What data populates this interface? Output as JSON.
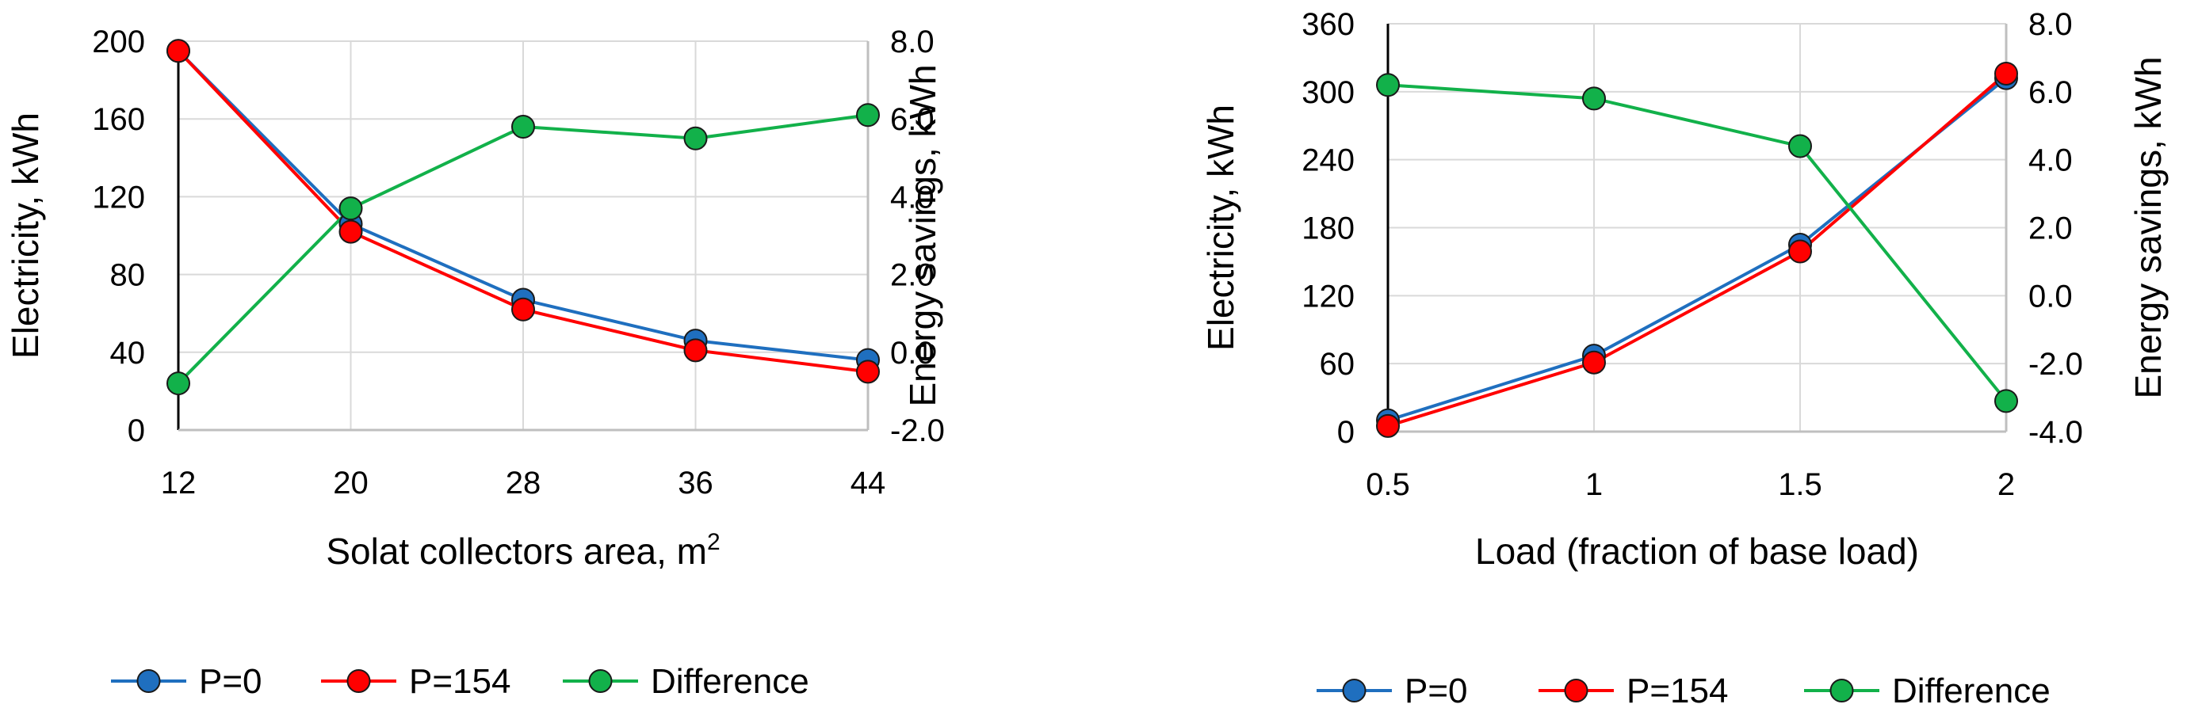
{
  "colors": {
    "p0": "#1f6fbf",
    "p154": "#ff0000",
    "diff": "#12b14a",
    "grid": "#d9d9d9"
  },
  "legend": {
    "p0": "P=0",
    "p154": "P=154",
    "diff": "Difference"
  },
  "chart_data": [
    {
      "type": "line",
      "title": "",
      "categories": [
        "12",
        "20",
        "28",
        "36",
        "44"
      ],
      "xlabel": "Solat collectors area, m",
      "xlabel_sup": "2",
      "ylabel": "Electricity, kWh",
      "y2label": "Energy savings, kWh",
      "ylim": [
        0,
        200
      ],
      "yticks": [
        "0",
        "40",
        "80",
        "120",
        "160",
        "200"
      ],
      "y2lim": [
        -2.0,
        8.0
      ],
      "y2ticks": [
        "-2.0",
        "0.0",
        "2.0",
        "4.0",
        "6.0",
        "8.0"
      ],
      "series": [
        {
          "name": "P=0",
          "axis": "left",
          "values": [
            195,
            106,
            67,
            46,
            36
          ]
        },
        {
          "name": "P=154",
          "axis": "left",
          "values": [
            195,
            102,
            62,
            41,
            30
          ]
        },
        {
          "name": "Difference",
          "axis": "right",
          "values": [
            -0.8,
            3.7,
            5.8,
            5.5,
            6.1
          ]
        }
      ]
    },
    {
      "type": "line",
      "title": "",
      "categories": [
        "0.5",
        "1",
        "1.5",
        "2"
      ],
      "xlabel": "Load (fraction of base load)",
      "xlabel_sup": "",
      "ylabel": "Electricity, kWh",
      "y2label": "Energy savings, kWh",
      "ylim": [
        0,
        360
      ],
      "yticks": [
        "0",
        "60",
        "120",
        "180",
        "240",
        "300",
        "360"
      ],
      "y2lim": [
        -4.0,
        8.0
      ],
      "y2ticks": [
        "-4.0",
        "-2.0",
        "0.0",
        "2.0",
        "4.0",
        "6.0",
        "8.0"
      ],
      "series": [
        {
          "name": "P=0",
          "axis": "left",
          "values": [
            10,
            67,
            165,
            312
          ]
        },
        {
          "name": "P=154",
          "axis": "left",
          "values": [
            5,
            61,
            159,
            316
          ]
        },
        {
          "name": "Difference",
          "axis": "right",
          "values": [
            6.2,
            5.8,
            4.4,
            -3.1
          ]
        }
      ]
    }
  ]
}
